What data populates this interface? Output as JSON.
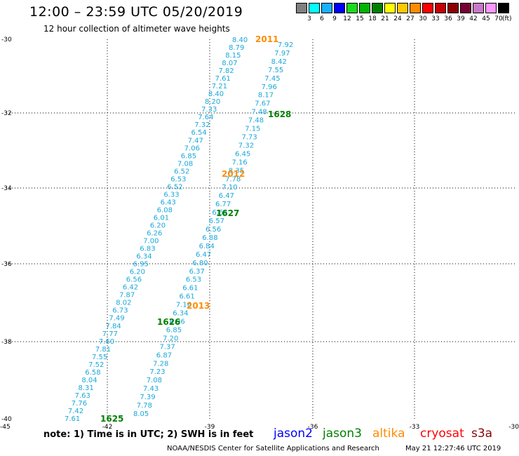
{
  "header": {
    "title": "12:00 – 23:59 UTC 05/20/2019",
    "subtitle": "12 hour collection of altimeter wave heights"
  },
  "scale": {
    "colors": [
      "#808080",
      "#00ffff",
      "#1ab0ff",
      "#0000ff",
      "#1adc1a",
      "#00b400",
      "#008000",
      "#ffff00",
      "#ffc800",
      "#ff8c00",
      "#ff0000",
      "#c80000",
      "#8c0000",
      "#780032",
      "#c878c8",
      "#ff96ff",
      "#000000"
    ],
    "ticks": [
      "3",
      "6",
      "9",
      "12",
      "15",
      "18",
      "21",
      "24",
      "27",
      "30",
      "33",
      "36",
      "39",
      "42",
      "45",
      "70"
    ],
    "unit": "(ft)"
  },
  "axes": {
    "y_ticks": [
      "-30",
      "-32",
      "-34",
      "-36",
      "-38",
      "-40"
    ],
    "x_ticks": [
      "-45",
      "-42",
      "-39",
      "-36",
      "-33",
      "-30"
    ]
  },
  "tracks": {
    "track_a": [
      "8.40",
      "8.79",
      "8.15",
      "8.07",
      "7.82",
      "7.61",
      "7.21",
      "8.40",
      "8.20",
      "7.33",
      "7.64",
      "7.32",
      "6.54",
      "7.47",
      "7.06",
      "6.85",
      "7.08",
      "6.52",
      "6.53",
      "6.52",
      "6.33",
      "6.43",
      "6.08",
      "6.01",
      "6.20",
      "6.26",
      "7.00",
      "6.83",
      "6.34",
      "6.95",
      "6.20",
      "6.56",
      "6.42",
      "7.87",
      "8.02",
      "6.73",
      "7.49",
      "7.84",
      "7.77",
      "7.60",
      "7.81",
      "7.55",
      "7.52",
      "6.58",
      "8.04",
      "8.31",
      "7.63",
      "7.76",
      "7.42",
      "7.61"
    ],
    "track_b": [
      "7.92",
      "7.97",
      "8.42",
      "7.55",
      "7.45",
      "7.96",
      "8.17",
      "7.67",
      "7.48",
      "7.48",
      "7.15",
      "7.73",
      "7.32",
      "6.45",
      "7.16",
      "8.35",
      "7.78",
      "7.10",
      "6.47",
      "6.77",
      "6.65",
      "6.57",
      "6.56",
      "6.88",
      "6.84",
      "6.47",
      "6.80",
      "6.37",
      "6.53",
      "6.61",
      "6.61",
      "7.16",
      "6.34",
      "6.96",
      "6.85",
      "7.20",
      "7.37",
      "6.87",
      "7.28",
      "7.23",
      "7.08",
      "7.43",
      "7.39",
      "7.78",
      "8.05"
    ]
  },
  "markers": [
    {
      "label": "2011",
      "color": "#ff8c00"
    },
    {
      "label": "1628",
      "color": "#008000"
    },
    {
      "label": "2012",
      "color": "#ff8c00"
    },
    {
      "label": "1627",
      "color": "#008000"
    },
    {
      "label": "2013",
      "color": "#ff8c00"
    },
    {
      "label": "1626",
      "color": "#008000"
    },
    {
      "label": "1625",
      "color": "#008000"
    }
  ],
  "footer": {
    "note": "note: 1) Time is in UTC; 2) SWH is in feet",
    "satellites": [
      {
        "name": "jason2",
        "color": "#0000ff"
      },
      {
        "name": "jason3",
        "color": "#008000"
      },
      {
        "name": "altika",
        "color": "#ff8c00"
      },
      {
        "name": "cryosat",
        "color": "#ff0000"
      },
      {
        "name": "s3a",
        "color": "#8c0000"
      }
    ],
    "credit": "NOAA/NESDIS Center for Satellite Applications and Research",
    "timestamp": "May 21 12:27:46 UTC 2019"
  }
}
